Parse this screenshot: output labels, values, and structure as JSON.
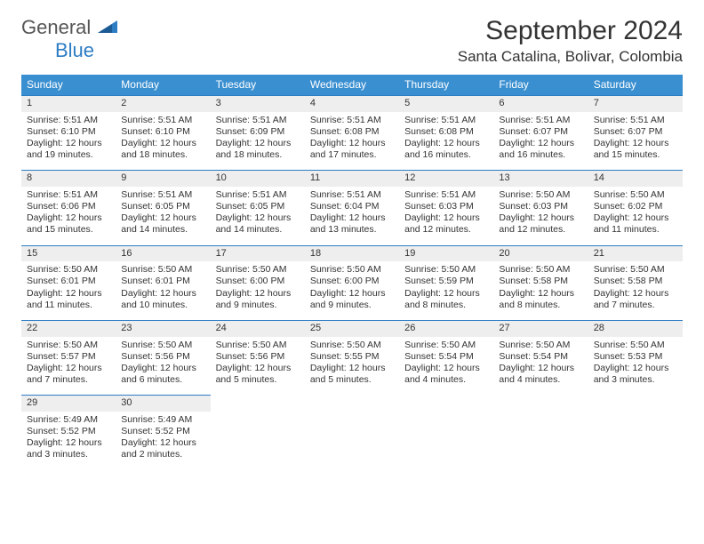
{
  "logo": {
    "word1": "General",
    "word2": "Blue",
    "shape_color": "#2d7dc4"
  },
  "header": {
    "month": "September 2024",
    "location": "Santa Catalina, Bolivar, Colombia"
  },
  "colors": {
    "header_bg": "#3a8fd0",
    "header_text": "#ffffff",
    "daynum_bg": "#eeeeee",
    "rule": "#2d7dc4",
    "text": "#333333",
    "background": "#ffffff"
  },
  "typography": {
    "month_fontsize": 30,
    "location_fontsize": 17,
    "dayhead_fontsize": 12,
    "cell_fontsize": 10.5
  },
  "calendar": {
    "type": "table",
    "day_headers": [
      "Sunday",
      "Monday",
      "Tuesday",
      "Wednesday",
      "Thursday",
      "Friday",
      "Saturday"
    ],
    "weeks": [
      [
        {
          "daynum": "1",
          "sunrise": "Sunrise: 5:51 AM",
          "sunset": "Sunset: 6:10 PM",
          "daylight1": "Daylight: 12 hours",
          "daylight2": "and 19 minutes."
        },
        {
          "daynum": "2",
          "sunrise": "Sunrise: 5:51 AM",
          "sunset": "Sunset: 6:10 PM",
          "daylight1": "Daylight: 12 hours",
          "daylight2": "and 18 minutes."
        },
        {
          "daynum": "3",
          "sunrise": "Sunrise: 5:51 AM",
          "sunset": "Sunset: 6:09 PM",
          "daylight1": "Daylight: 12 hours",
          "daylight2": "and 18 minutes."
        },
        {
          "daynum": "4",
          "sunrise": "Sunrise: 5:51 AM",
          "sunset": "Sunset: 6:08 PM",
          "daylight1": "Daylight: 12 hours",
          "daylight2": "and 17 minutes."
        },
        {
          "daynum": "5",
          "sunrise": "Sunrise: 5:51 AM",
          "sunset": "Sunset: 6:08 PM",
          "daylight1": "Daylight: 12 hours",
          "daylight2": "and 16 minutes."
        },
        {
          "daynum": "6",
          "sunrise": "Sunrise: 5:51 AM",
          "sunset": "Sunset: 6:07 PM",
          "daylight1": "Daylight: 12 hours",
          "daylight2": "and 16 minutes."
        },
        {
          "daynum": "7",
          "sunrise": "Sunrise: 5:51 AM",
          "sunset": "Sunset: 6:07 PM",
          "daylight1": "Daylight: 12 hours",
          "daylight2": "and 15 minutes."
        }
      ],
      [
        {
          "daynum": "8",
          "sunrise": "Sunrise: 5:51 AM",
          "sunset": "Sunset: 6:06 PM",
          "daylight1": "Daylight: 12 hours",
          "daylight2": "and 15 minutes."
        },
        {
          "daynum": "9",
          "sunrise": "Sunrise: 5:51 AM",
          "sunset": "Sunset: 6:05 PM",
          "daylight1": "Daylight: 12 hours",
          "daylight2": "and 14 minutes."
        },
        {
          "daynum": "10",
          "sunrise": "Sunrise: 5:51 AM",
          "sunset": "Sunset: 6:05 PM",
          "daylight1": "Daylight: 12 hours",
          "daylight2": "and 14 minutes."
        },
        {
          "daynum": "11",
          "sunrise": "Sunrise: 5:51 AM",
          "sunset": "Sunset: 6:04 PM",
          "daylight1": "Daylight: 12 hours",
          "daylight2": "and 13 minutes."
        },
        {
          "daynum": "12",
          "sunrise": "Sunrise: 5:51 AM",
          "sunset": "Sunset: 6:03 PM",
          "daylight1": "Daylight: 12 hours",
          "daylight2": "and 12 minutes."
        },
        {
          "daynum": "13",
          "sunrise": "Sunrise: 5:50 AM",
          "sunset": "Sunset: 6:03 PM",
          "daylight1": "Daylight: 12 hours",
          "daylight2": "and 12 minutes."
        },
        {
          "daynum": "14",
          "sunrise": "Sunrise: 5:50 AM",
          "sunset": "Sunset: 6:02 PM",
          "daylight1": "Daylight: 12 hours",
          "daylight2": "and 11 minutes."
        }
      ],
      [
        {
          "daynum": "15",
          "sunrise": "Sunrise: 5:50 AM",
          "sunset": "Sunset: 6:01 PM",
          "daylight1": "Daylight: 12 hours",
          "daylight2": "and 11 minutes."
        },
        {
          "daynum": "16",
          "sunrise": "Sunrise: 5:50 AM",
          "sunset": "Sunset: 6:01 PM",
          "daylight1": "Daylight: 12 hours",
          "daylight2": "and 10 minutes."
        },
        {
          "daynum": "17",
          "sunrise": "Sunrise: 5:50 AM",
          "sunset": "Sunset: 6:00 PM",
          "daylight1": "Daylight: 12 hours",
          "daylight2": "and 9 minutes."
        },
        {
          "daynum": "18",
          "sunrise": "Sunrise: 5:50 AM",
          "sunset": "Sunset: 6:00 PM",
          "daylight1": "Daylight: 12 hours",
          "daylight2": "and 9 minutes."
        },
        {
          "daynum": "19",
          "sunrise": "Sunrise: 5:50 AM",
          "sunset": "Sunset: 5:59 PM",
          "daylight1": "Daylight: 12 hours",
          "daylight2": "and 8 minutes."
        },
        {
          "daynum": "20",
          "sunrise": "Sunrise: 5:50 AM",
          "sunset": "Sunset: 5:58 PM",
          "daylight1": "Daylight: 12 hours",
          "daylight2": "and 8 minutes."
        },
        {
          "daynum": "21",
          "sunrise": "Sunrise: 5:50 AM",
          "sunset": "Sunset: 5:58 PM",
          "daylight1": "Daylight: 12 hours",
          "daylight2": "and 7 minutes."
        }
      ],
      [
        {
          "daynum": "22",
          "sunrise": "Sunrise: 5:50 AM",
          "sunset": "Sunset: 5:57 PM",
          "daylight1": "Daylight: 12 hours",
          "daylight2": "and 7 minutes."
        },
        {
          "daynum": "23",
          "sunrise": "Sunrise: 5:50 AM",
          "sunset": "Sunset: 5:56 PM",
          "daylight1": "Daylight: 12 hours",
          "daylight2": "and 6 minutes."
        },
        {
          "daynum": "24",
          "sunrise": "Sunrise: 5:50 AM",
          "sunset": "Sunset: 5:56 PM",
          "daylight1": "Daylight: 12 hours",
          "daylight2": "and 5 minutes."
        },
        {
          "daynum": "25",
          "sunrise": "Sunrise: 5:50 AM",
          "sunset": "Sunset: 5:55 PM",
          "daylight1": "Daylight: 12 hours",
          "daylight2": "and 5 minutes."
        },
        {
          "daynum": "26",
          "sunrise": "Sunrise: 5:50 AM",
          "sunset": "Sunset: 5:54 PM",
          "daylight1": "Daylight: 12 hours",
          "daylight2": "and 4 minutes."
        },
        {
          "daynum": "27",
          "sunrise": "Sunrise: 5:50 AM",
          "sunset": "Sunset: 5:54 PM",
          "daylight1": "Daylight: 12 hours",
          "daylight2": "and 4 minutes."
        },
        {
          "daynum": "28",
          "sunrise": "Sunrise: 5:50 AM",
          "sunset": "Sunset: 5:53 PM",
          "daylight1": "Daylight: 12 hours",
          "daylight2": "and 3 minutes."
        }
      ],
      [
        {
          "daynum": "29",
          "sunrise": "Sunrise: 5:49 AM",
          "sunset": "Sunset: 5:52 PM",
          "daylight1": "Daylight: 12 hours",
          "daylight2": "and 3 minutes."
        },
        {
          "daynum": "30",
          "sunrise": "Sunrise: 5:49 AM",
          "sunset": "Sunset: 5:52 PM",
          "daylight1": "Daylight: 12 hours",
          "daylight2": "and 2 minutes."
        },
        null,
        null,
        null,
        null,
        null
      ]
    ]
  }
}
